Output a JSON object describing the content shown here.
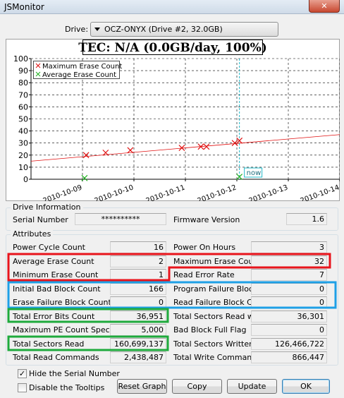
{
  "window": {
    "title": "JSMonitor"
  },
  "drive": {
    "label": "Drive:",
    "selected": "OCZ-ONYX (Drive #2, 32.0GB)"
  },
  "chart_data": {
    "type": "scatter",
    "title": "TEC: N/A (0.0GB/day, 100%)",
    "xlim": [
      -1,
      5
    ],
    "xticks": [
      {
        "value": 0,
        "label": "2010-10-09"
      },
      {
        "value": 1,
        "label": "2010-10-10"
      },
      {
        "value": 2,
        "label": "2010-10-11"
      },
      {
        "value": 3,
        "label": "2010-10-12"
      },
      {
        "value": 4,
        "label": "2010-10-13"
      },
      {
        "value": 5,
        "label": "2010-10-14"
      }
    ],
    "ylim": [
      0,
      100
    ],
    "yticks": [
      0,
      10,
      20,
      30,
      40,
      50,
      60,
      70,
      80,
      90,
      100
    ],
    "grid": true,
    "legend": "upper left",
    "series": [
      {
        "name": "Maximum Erase Count",
        "color": "#e01010",
        "x": [
          0.07,
          0.45,
          0.93,
          1.93,
          2.3,
          2.41,
          2.96,
          3.05
        ],
        "values": [
          20,
          22,
          24,
          26,
          27,
          27,
          30,
          32
        ]
      },
      {
        "name": "Average Erase Count",
        "color": "#20b020",
        "x": [
          0.04,
          3.05
        ],
        "values": [
          1,
          2
        ]
      }
    ],
    "trendline": {
      "color": "#e01010",
      "x": [
        -1,
        5
      ],
      "values": [
        15,
        37
      ]
    },
    "now": {
      "label": "now",
      "x": 3.05,
      "color": "#20b8c8"
    }
  },
  "drive_info": {
    "title": "Drive Information",
    "fields": [
      {
        "label": "Serial Number",
        "value": "**********"
      },
      {
        "label": "Firmware Version",
        "value": "1.6"
      }
    ]
  },
  "attributes": {
    "title": "Attributes",
    "rows": [
      [
        {
          "label": "Power Cycle Count",
          "value": "16"
        },
        {
          "label": "Power On Hours",
          "value": "3"
        }
      ],
      [
        {
          "label": "Average Erase Count",
          "value": "2"
        },
        {
          "label": "Maximum Erase Count",
          "value": "32"
        }
      ],
      [
        {
          "label": "Minimum Erase Count",
          "value": "1"
        },
        {
          "label": "Read Error Rate",
          "value": "7"
        }
      ],
      [
        {
          "label": "Initial Bad Block Count",
          "value": "166"
        },
        {
          "label": "Program Failure Block Count",
          "value": "0"
        }
      ],
      [
        {
          "label": "Erase Failure Block Count",
          "value": "0"
        },
        {
          "label": "Read Failure Block Count",
          "value": "0"
        }
      ],
      [
        {
          "label": "Total Error Bits Count",
          "value": "36,951"
        },
        {
          "label": "Total Sectors Read with CBE",
          "value": "36,301"
        }
      ],
      [
        {
          "label": "Maximum PE Count Specification",
          "value": "5,000"
        },
        {
          "label": "Bad Block Full Flag",
          "value": "0"
        }
      ],
      [
        {
          "label": "Total Sectors Read",
          "value": "160,699,137"
        },
        {
          "label": "Total Sectors Written",
          "value": "126,466,722"
        }
      ],
      [
        {
          "label": "Total Read Commands",
          "value": "2,438,487"
        },
        {
          "label": "Total Write Commands",
          "value": "866,447"
        }
      ]
    ]
  },
  "options": [
    {
      "label": "Hide the Serial Number",
      "checked": true
    },
    {
      "label": "Disable the Tooltips",
      "checked": false
    }
  ],
  "buttons": [
    "Reset Graph",
    "Copy",
    "Update",
    "OK"
  ]
}
